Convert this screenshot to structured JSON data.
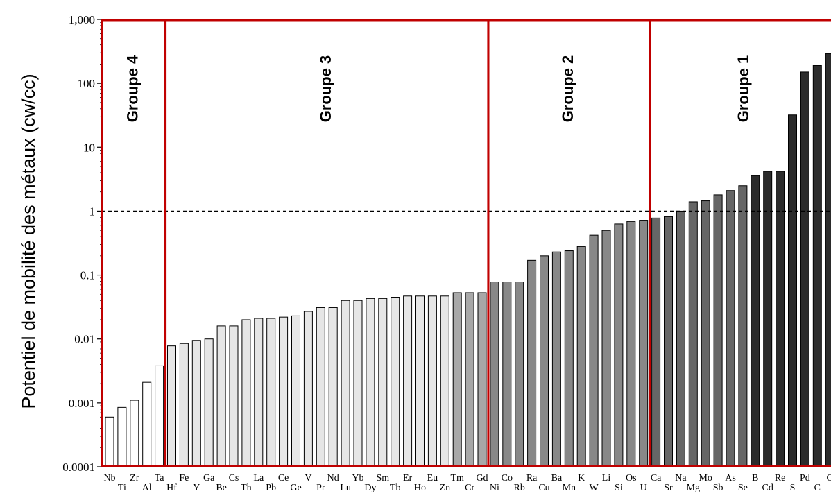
{
  "chart_data": {
    "type": "bar",
    "title": "",
    "xlabel": "",
    "ylabel": "Potentiel de mobilité des métaux (cw/cc)",
    "yscale": "log",
    "ylim": [
      0.0001,
      1000
    ],
    "yticks": [
      {
        "value": 0.0001,
        "label": "0.0001"
      },
      {
        "value": 0.001,
        "label": "0.001"
      },
      {
        "value": 0.01,
        "label": "0.01"
      },
      {
        "value": 0.1,
        "label": "0.1"
      },
      {
        "value": 1,
        "label": "1"
      },
      {
        "value": 10,
        "label": "10"
      },
      {
        "value": 100,
        "label": "100"
      },
      {
        "value": 1000,
        "label": "1,000"
      }
    ],
    "reference_line": {
      "value": 1,
      "style": "dashed"
    },
    "categories": [
      "Nb",
      "Ti",
      "Zr",
      "Al",
      "Ta",
      "Hf",
      "Fe",
      "Y",
      "Ga",
      "Be",
      "Cs",
      "Th",
      "La",
      "Pb",
      "Ce",
      "Ge",
      "V",
      "Pr",
      "Nd",
      "Lu",
      "Yb",
      "Dy",
      "Sm",
      "Tb",
      "Er",
      "Ho",
      "Eu",
      "Zn",
      "Tm",
      "Cr",
      "Gd",
      "Ni",
      "Co",
      "Rb",
      "Ra",
      "Cu",
      "Ba",
      "Mn",
      "K",
      "W",
      "Li",
      "Si",
      "Os",
      "U",
      "Ca",
      "Sr",
      "Na",
      "Mg",
      "Mo",
      "Sb",
      "As",
      "Se",
      "B",
      "Cd",
      "Re",
      "S",
      "Pd",
      "C",
      "C"
    ],
    "values": [
      0.0006,
      0.00085,
      0.0011,
      0.0021,
      0.0038,
      0.0078,
      0.0085,
      0.0095,
      0.01,
      0.016,
      0.016,
      0.02,
      0.021,
      0.021,
      0.022,
      0.023,
      0.027,
      0.031,
      0.031,
      0.04,
      0.04,
      0.043,
      0.043,
      0.045,
      0.047,
      0.047,
      0.047,
      0.047,
      0.053,
      0.053,
      0.053,
      0.078,
      0.078,
      0.078,
      0.17,
      0.2,
      0.23,
      0.24,
      0.28,
      0.42,
      0.5,
      0.63,
      0.69,
      0.72,
      0.78,
      0.82,
      1.0,
      1.4,
      1.45,
      1.8,
      2.1,
      2.5,
      3.6,
      4.2,
      4.2,
      32,
      150,
      190,
      290
    ],
    "bar_colors": {
      "group4": "#ffffff",
      "group3": "#e6e6e6",
      "group3_dark": "#a8a8a8",
      "group2": "#888888",
      "group1": "#666666",
      "group1_dark": "#2b2b2b"
    },
    "groups": [
      {
        "label": "Groupe 4",
        "from_index": 0,
        "to_index": 4
      },
      {
        "label": "Groupe 3",
        "from_index": 5,
        "to_index": 30
      },
      {
        "label": "Groupe 2",
        "from_index": 31,
        "to_index": 43
      },
      {
        "label": "Groupe 1",
        "from_index": 44,
        "to_index": 58
      }
    ],
    "group_border_color": "#c00000",
    "grid": false,
    "legend": "none"
  }
}
